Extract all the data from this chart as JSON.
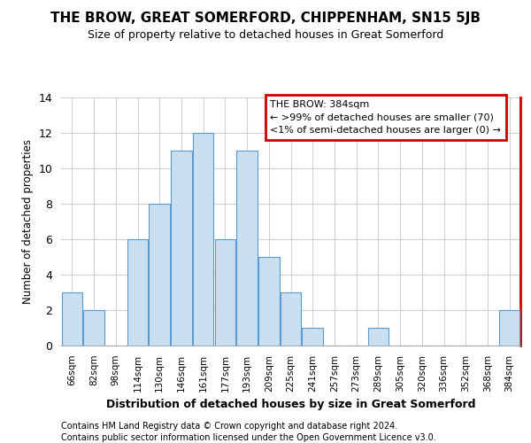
{
  "title": "THE BROW, GREAT SOMERFORD, CHIPPENHAM, SN15 5JB",
  "subtitle": "Size of property relative to detached houses in Great Somerford",
  "xlabel": "Distribution of detached houses by size in Great Somerford",
  "ylabel": "Number of detached properties",
  "categories": [
    "66sqm",
    "82sqm",
    "98sqm",
    "114sqm",
    "130sqm",
    "146sqm",
    "161sqm",
    "177sqm",
    "193sqm",
    "209sqm",
    "225sqm",
    "241sqm",
    "257sqm",
    "273sqm",
    "289sqm",
    "305sqm",
    "320sqm",
    "336sqm",
    "352sqm",
    "368sqm",
    "384sqm"
  ],
  "values": [
    3,
    2,
    0,
    6,
    8,
    11,
    12,
    6,
    11,
    5,
    3,
    1,
    0,
    0,
    1,
    0,
    0,
    0,
    0,
    0,
    2
  ],
  "bar_color": "#c9dff0",
  "bar_edge_color": "#5b9bd5",
  "ylim": [
    0,
    14
  ],
  "yticks": [
    0,
    2,
    4,
    6,
    8,
    10,
    12,
    14
  ],
  "legend_title": "THE BROW: 384sqm",
  "legend_line1": "← >99% of detached houses are smaller (70)",
  "legend_line2": "<1% of semi-detached houses are larger (0) →",
  "legend_box_color": "#ffffff",
  "legend_box_edge_color": "#cc0000",
  "footer_line1": "Contains HM Land Registry data © Crown copyright and database right 2024.",
  "footer_line2": "Contains public sector information licensed under the Open Government Licence v3.0.",
  "background_color": "#ffffff",
  "grid_color": "#d0d0d0"
}
